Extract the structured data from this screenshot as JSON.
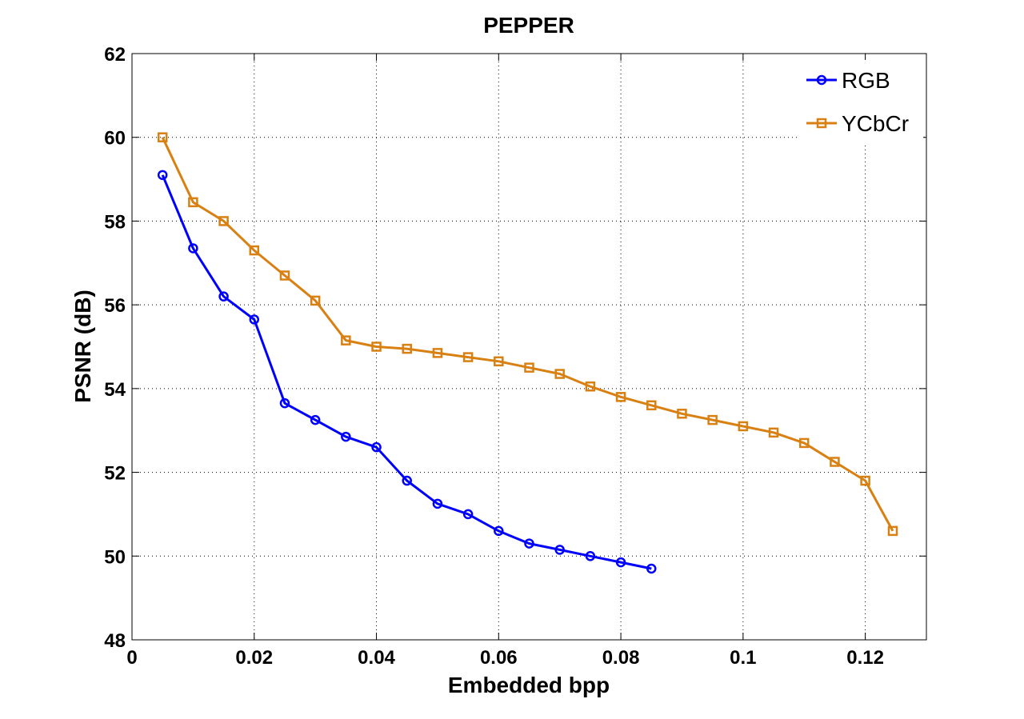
{
  "chart_data": {
    "type": "line",
    "title": "PEPPER",
    "xlabel": "Embedded bpp",
    "ylabel": "PSNR (dB)",
    "xlim": [
      0,
      0.13
    ],
    "ylim": [
      48,
      62
    ],
    "xticks": [
      0,
      0.02,
      0.04,
      0.06,
      0.08,
      0.1,
      0.12
    ],
    "xtick_labels": [
      "0",
      "0.02",
      "0.04",
      "0.06",
      "0.08",
      "0.1",
      "0.12"
    ],
    "yticks": [
      48,
      50,
      52,
      54,
      56,
      58,
      60,
      62
    ],
    "ytick_labels": [
      "48",
      "50",
      "52",
      "54",
      "56",
      "58",
      "60",
      "62"
    ],
    "grid": true,
    "legend_position": "top-right",
    "series": [
      {
        "name": "RGB",
        "color": "#0000ff",
        "marker": "circle",
        "x": [
          0.005,
          0.01,
          0.015,
          0.02,
          0.025,
          0.03,
          0.035,
          0.04,
          0.045,
          0.05,
          0.055,
          0.06,
          0.065,
          0.07,
          0.075,
          0.08,
          0.085
        ],
        "y": [
          59.1,
          57.35,
          56.2,
          55.65,
          53.65,
          53.25,
          52.85,
          52.6,
          51.8,
          51.25,
          51.0,
          50.6,
          50.3,
          50.15,
          50.0,
          49.85,
          49.7
        ]
      },
      {
        "name": "YCbCr",
        "color": "#d98012",
        "marker": "square",
        "x": [
          0.005,
          0.01,
          0.015,
          0.02,
          0.025,
          0.03,
          0.035,
          0.04,
          0.045,
          0.05,
          0.055,
          0.06,
          0.065,
          0.07,
          0.075,
          0.08,
          0.085,
          0.09,
          0.095,
          0.1,
          0.105,
          0.11,
          0.115,
          0.12,
          0.1245
        ],
        "y": [
          60.0,
          58.45,
          58.0,
          57.3,
          56.7,
          56.1,
          55.15,
          55.0,
          54.95,
          54.85,
          54.75,
          54.65,
          54.5,
          54.35,
          54.05,
          53.8,
          53.6,
          53.4,
          53.25,
          53.1,
          52.95,
          52.7,
          52.25,
          51.8,
          50.6
        ]
      }
    ]
  }
}
